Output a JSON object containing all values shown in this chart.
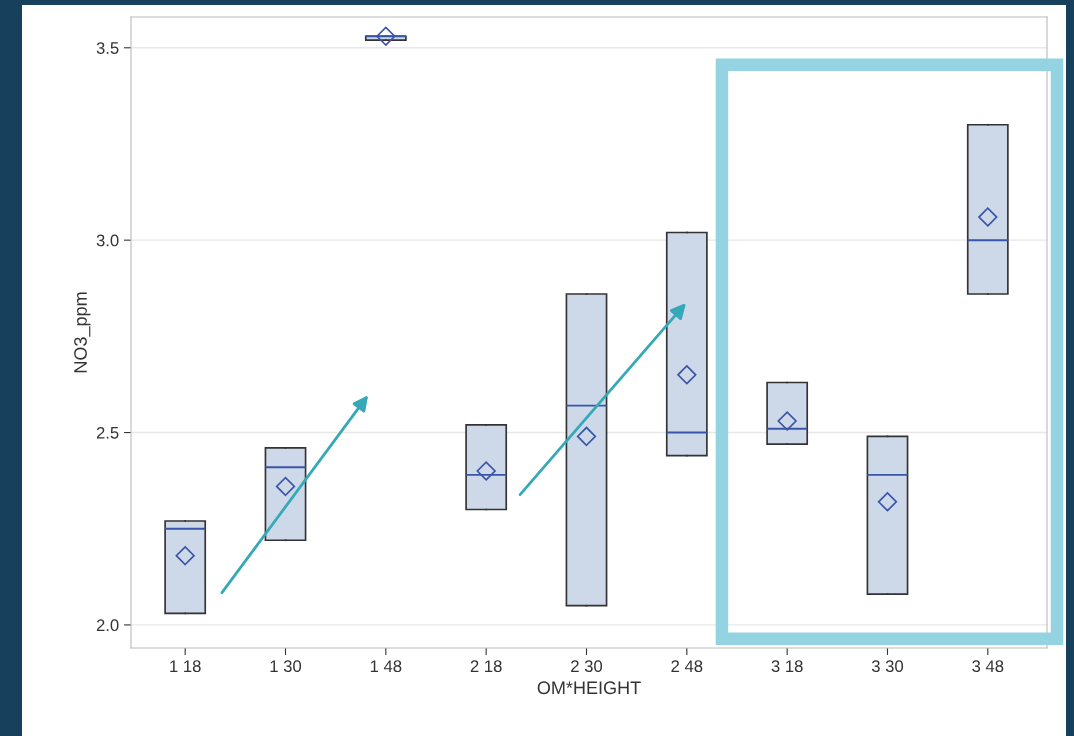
{
  "chart_data": {
    "type": "box",
    "xlabel": "OM*HEIGHT",
    "ylabel": "NO3_ppm",
    "categories": [
      "1 18",
      "1 30",
      "1 48",
      "2 18",
      "2 30",
      "2 48",
      "3 18",
      "3 30",
      "3 48"
    ],
    "color": "#cdd8e8",
    "boxes": [
      {
        "low": 2.03,
        "q1": 2.03,
        "median": 2.25,
        "q3": 2.27,
        "high": 2.27,
        "mean": 2.18
      },
      {
        "low": 2.22,
        "q1": 2.22,
        "median": 2.41,
        "q3": 2.46,
        "high": 2.46,
        "mean": 2.36
      },
      {
        "low": 3.52,
        "q1": 3.52,
        "median": 3.53,
        "q3": 3.53,
        "high": 3.53,
        "mean": 3.53
      },
      {
        "low": 2.3,
        "q1": 2.3,
        "median": 2.39,
        "q3": 2.52,
        "high": 2.52,
        "mean": 2.4
      },
      {
        "low": 2.05,
        "q1": 2.05,
        "median": 2.57,
        "q3": 2.86,
        "high": 2.86,
        "mean": 2.49
      },
      {
        "low": 2.44,
        "q1": 2.44,
        "median": 2.5,
        "q3": 3.02,
        "high": 3.02,
        "mean": 2.65
      },
      {
        "low": 2.47,
        "q1": 2.47,
        "median": 2.51,
        "q3": 2.63,
        "high": 2.63,
        "mean": 2.53
      },
      {
        "low": 2.08,
        "q1": 2.08,
        "median": 2.39,
        "q3": 2.49,
        "high": 2.49,
        "mean": 2.32
      },
      {
        "low": 2.86,
        "q1": 2.86,
        "median": 3.0,
        "q3": 3.3,
        "high": 3.3,
        "mean": 3.06
      }
    ],
    "ylim": [
      1.94,
      3.58
    ],
    "yticks": [
      {
        "value": 2.0,
        "label": "2.0"
      },
      {
        "value": 2.5,
        "label": "2.5"
      },
      {
        "value": 3.0,
        "label": "3.0"
      },
      {
        "value": 3.5,
        "label": "3.5"
      }
    ],
    "grid": "y",
    "marker": "diamond"
  }
}
